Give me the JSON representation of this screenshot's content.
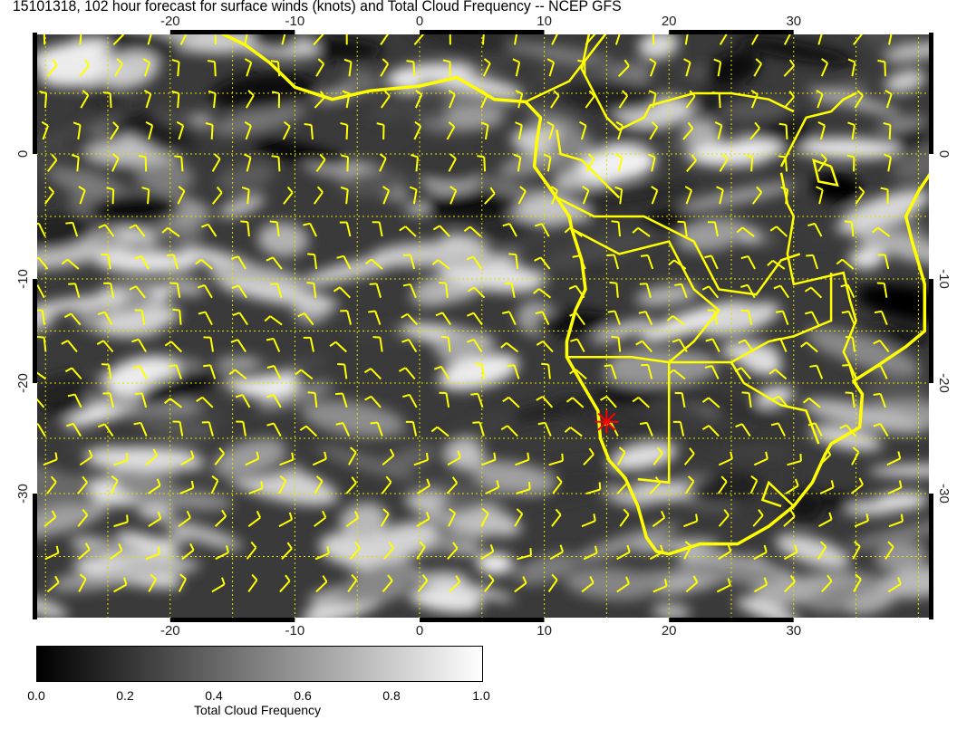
{
  "title": "15101318, 102 hour forecast for surface winds (knots) and Total Cloud Frequency -- NCEP GFS",
  "map": {
    "lon_range": [
      -31,
      41
    ],
    "lat_range": [
      -40,
      10
    ],
    "lon_ticks": [
      "-20",
      "-10",
      "0",
      "10",
      "20",
      "30"
    ],
    "lat_ticks": [
      "0",
      "-10",
      "-20",
      "-30"
    ],
    "overlay_color": "#ffff00",
    "marker": {
      "lon": 15,
      "lat": -23.5,
      "color": "#ff0000",
      "symbol": "star"
    },
    "coastline": [
      [
        -17,
        10.5
      ],
      [
        -14,
        9
      ],
      [
        -12,
        7.5
      ],
      [
        -10,
        5.5
      ],
      [
        -7,
        4.5
      ],
      [
        -4,
        5.2
      ],
      [
        0,
        5.6
      ],
      [
        3,
        6.3
      ],
      [
        6,
        4.5
      ],
      [
        8.5,
        4.3
      ],
      [
        9.7,
        3
      ],
      [
        9.4,
        1
      ],
      [
        9.2,
        -1
      ],
      [
        11,
        -3.5
      ],
      [
        12,
        -5
      ],
      [
        12.2,
        -6
      ],
      [
        13,
        -8.5
      ],
      [
        13.3,
        -11
      ],
      [
        12.5,
        -13
      ],
      [
        11.8,
        -16
      ],
      [
        11.8,
        -17.5
      ],
      [
        13,
        -20
      ],
      [
        14.3,
        -22.5
      ],
      [
        14.5,
        -25
      ],
      [
        15.2,
        -27
      ],
      [
        16.5,
        -28.6
      ],
      [
        17.5,
        -31
      ],
      [
        18.2,
        -33.5
      ],
      [
        19,
        -34.6
      ],
      [
        20,
        -34.8
      ],
      [
        22.5,
        -34
      ],
      [
        25.5,
        -34
      ],
      [
        28,
        -32.6
      ],
      [
        30,
        -31
      ],
      [
        31.5,
        -29
      ],
      [
        32.5,
        -26.5
      ],
      [
        33,
        -25.5
      ],
      [
        35.3,
        -24
      ],
      [
        35.5,
        -21
      ],
      [
        34.8,
        -19.8
      ],
      [
        36.5,
        -18.5
      ],
      [
        39,
        -16.5
      ],
      [
        40.5,
        -15
      ],
      [
        40.5,
        -10.5
      ],
      [
        39.5,
        -7
      ],
      [
        39,
        -5
      ],
      [
        40,
        -3
      ],
      [
        41,
        -1.5
      ]
    ],
    "borders": [
      [
        [
          8.5,
          4.3
        ],
        [
          12,
          6
        ],
        [
          15,
          10
        ]
      ],
      [
        [
          11,
          -3.5
        ],
        [
          14,
          -5
        ],
        [
          18,
          -5
        ],
        [
          22,
          -7
        ],
        [
          24,
          -11
        ],
        [
          27,
          -11.5
        ],
        [
          29,
          -8.5
        ],
        [
          30.5,
          -8
        ]
      ],
      [
        [
          12.2,
          -6
        ],
        [
          16,
          -8
        ],
        [
          20,
          -7
        ],
        [
          22,
          -11
        ],
        [
          24,
          -13
        ],
        [
          22,
          -16
        ],
        [
          20,
          -18
        ],
        [
          17,
          -17.5
        ],
        [
          11.8,
          -17.5
        ]
      ],
      [
        [
          20,
          -18
        ],
        [
          20,
          -22
        ],
        [
          20,
          -25
        ],
        [
          20,
          -29
        ],
        [
          17.5,
          -28.7
        ]
      ],
      [
        [
          20,
          -18
        ],
        [
          25,
          -18
        ],
        [
          28,
          -16
        ],
        [
          30,
          -15.5
        ],
        [
          33,
          -14
        ],
        [
          33,
          -9.5
        ]
      ],
      [
        [
          25,
          -18
        ],
        [
          26,
          -20
        ],
        [
          29,
          -22
        ],
        [
          31,
          -22.5
        ],
        [
          32,
          -25.5
        ]
      ],
      [
        [
          30,
          -31
        ],
        [
          28,
          -29
        ],
        [
          27.5,
          -30.5
        ],
        [
          29,
          -31
        ]
      ],
      [
        [
          29,
          -1.5
        ],
        [
          29.5,
          -4
        ],
        [
          30,
          -5
        ],
        [
          29.5,
          -8
        ],
        [
          30,
          -10.5
        ],
        [
          34,
          -9.5
        ],
        [
          34.5,
          -12
        ],
        [
          35,
          -14
        ],
        [
          34,
          -17
        ],
        [
          35,
          -19.5
        ]
      ],
      [
        [
          29,
          -1
        ],
        [
          30,
          1
        ],
        [
          31,
          3
        ],
        [
          33,
          3.5
        ],
        [
          34,
          4.5
        ],
        [
          35,
          5
        ]
      ],
      [
        [
          33,
          -1
        ],
        [
          33.5,
          -2.5
        ],
        [
          32,
          -2.2
        ],
        [
          31.6,
          -0.5
        ],
        [
          33,
          -1
        ]
      ],
      [
        [
          14,
          12
        ],
        [
          13,
          7
        ],
        [
          15,
          3
        ],
        [
          16,
          2
        ],
        [
          18,
          3
        ],
        [
          18.5,
          4
        ],
        [
          22,
          5
        ],
        [
          25,
          5
        ],
        [
          28,
          4.5
        ],
        [
          30,
          3.5
        ]
      ],
      [
        [
          11,
          2
        ],
        [
          11.3,
          0
        ],
        [
          13,
          -0.5
        ],
        [
          14.5,
          -2
        ],
        [
          16,
          -3.5
        ]
      ]
    ]
  },
  "colorbar": {
    "title": "Total Cloud Frequency",
    "ticks": [
      "0.0",
      "0.2",
      "0.4",
      "0.6",
      "0.8",
      "1.0"
    ],
    "range": [
      0.0,
      1.0
    ],
    "colors": [
      "#000000",
      "#ffffff"
    ]
  }
}
